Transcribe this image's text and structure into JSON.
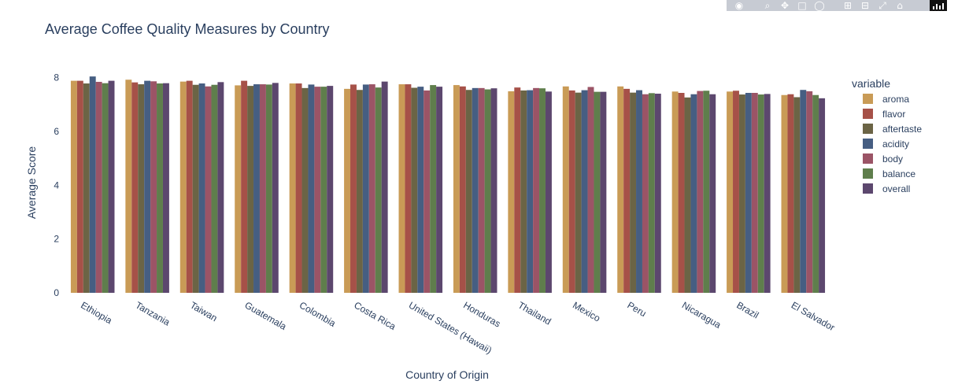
{
  "chart_data": {
    "type": "bar",
    "title": "Average Coffee Quality Measures by Country",
    "xlabel": "Country of Origin",
    "ylabel": "Average Score",
    "ylim": [
      0,
      8.6
    ],
    "yticks": [
      0,
      2,
      4,
      6,
      8
    ],
    "legend_title": "variable",
    "legend_position": "right",
    "grid": false,
    "categories": [
      "Ethiopia",
      "Tanzania",
      "Taiwan",
      "Guatemala",
      "Colombia",
      "Costa Rica",
      "United States (Hawaii)",
      "Honduras",
      "Thailand",
      "Mexico",
      "Peru",
      "Nicaragua",
      "Brazil",
      "El Salvador"
    ],
    "series": [
      {
        "name": "aroma",
        "color": "#c99b56",
        "values": [
          7.88,
          7.92,
          7.85,
          7.71,
          7.78,
          7.58,
          7.75,
          7.72,
          7.49,
          7.67,
          7.67,
          7.48,
          7.48,
          7.35
        ]
      },
      {
        "name": "flavor",
        "color": "#a65148",
        "values": [
          7.88,
          7.82,
          7.88,
          7.88,
          7.78,
          7.74,
          7.75,
          7.67,
          7.63,
          7.52,
          7.58,
          7.43,
          7.51,
          7.38
        ]
      },
      {
        "name": "aftertaste",
        "color": "#6b6445",
        "values": [
          7.78,
          7.75,
          7.73,
          7.69,
          7.61,
          7.54,
          7.62,
          7.54,
          7.52,
          7.44,
          7.44,
          7.26,
          7.37,
          7.27
        ]
      },
      {
        "name": "acidity",
        "color": "#465e82",
        "values": [
          8.04,
          7.88,
          7.78,
          7.75,
          7.74,
          7.74,
          7.66,
          7.61,
          7.53,
          7.53,
          7.53,
          7.38,
          7.43,
          7.54
        ]
      },
      {
        "name": "body",
        "color": "#9b5466",
        "values": [
          7.84,
          7.86,
          7.67,
          7.75,
          7.66,
          7.75,
          7.52,
          7.61,
          7.61,
          7.65,
          7.38,
          7.5,
          7.43,
          7.49
        ]
      },
      {
        "name": "balance",
        "color": "#5f7e4c",
        "values": [
          7.79,
          7.78,
          7.73,
          7.74,
          7.66,
          7.63,
          7.72,
          7.56,
          7.6,
          7.47,
          7.42,
          7.51,
          7.37,
          7.35
        ]
      },
      {
        "name": "overall",
        "color": "#5c476e",
        "values": [
          7.88,
          7.79,
          7.83,
          7.8,
          7.69,
          7.85,
          7.66,
          7.6,
          7.48,
          7.47,
          7.4,
          7.38,
          7.39,
          7.23
        ]
      }
    ]
  },
  "modebar": {
    "icons": [
      "camera-icon",
      "zoom-icon",
      "pan-icon",
      "box-select-icon",
      "lasso-icon",
      "zoom-in-icon",
      "zoom-out-icon",
      "autoscale-icon",
      "reset-axes-icon",
      "plotly-logo-icon"
    ]
  }
}
